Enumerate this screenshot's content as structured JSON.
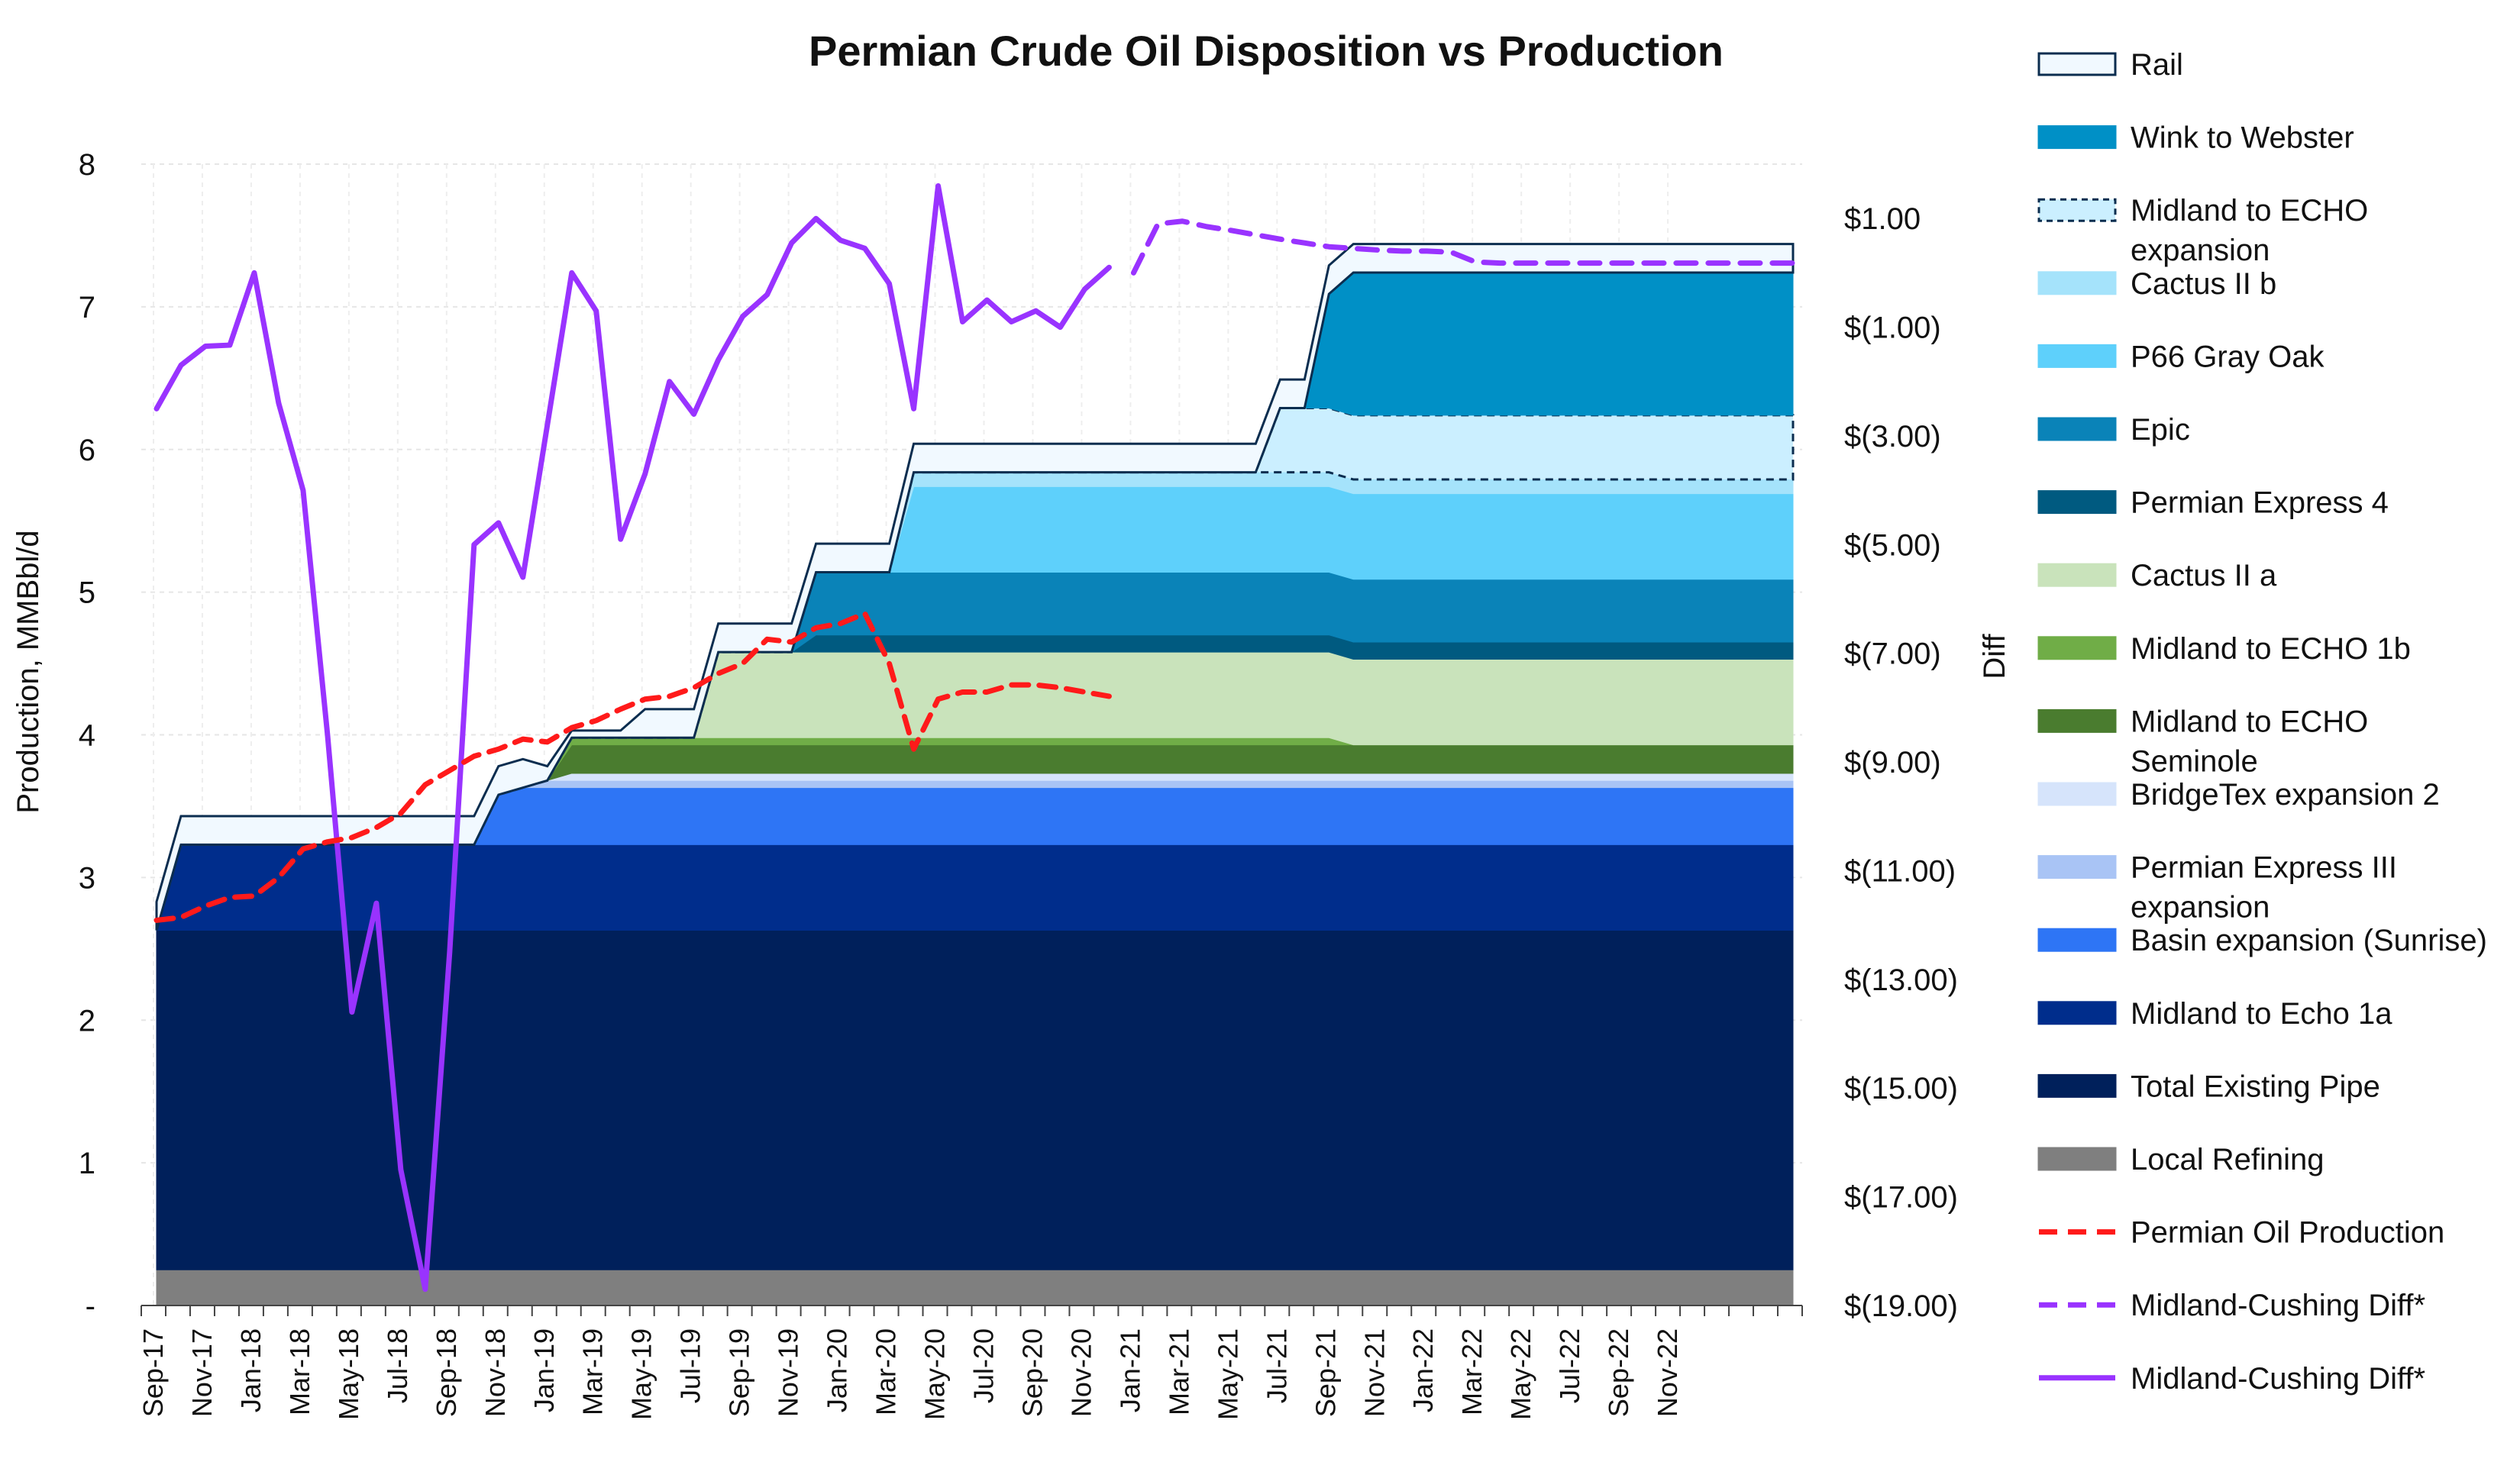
{
  "chart_data": {
    "type": "area",
    "title": "Permian Crude Oil Disposition vs Production",
    "ylabel": "Production, MMBbl/d",
    "y2label": "Diff",
    "ylim": [
      0,
      8
    ],
    "y2lim": [
      -19,
      2
    ],
    "y_ticks": [
      "-",
      "1",
      "2",
      "3",
      "4",
      "5",
      "6",
      "7",
      "8"
    ],
    "y2_ticks": [
      "$(19.00)",
      "$(17.00)",
      "$(15.00)",
      "$(13.00)",
      "$(11.00)",
      "$(9.00)",
      "$(7.00)",
      "$(5.00)",
      "$(3.00)",
      "$(1.00)",
      "$1.00"
    ],
    "y2_tick_values": [
      -19,
      -17,
      -15,
      -13,
      -11,
      -9,
      -7,
      -5,
      -3,
      -1,
      1
    ],
    "x_ticks": [
      "Sep-17",
      "Nov-17",
      "Jan-18",
      "Mar-18",
      "May-18",
      "Jul-18",
      "Sep-18",
      "Nov-18",
      "Jan-19",
      "Mar-19",
      "May-19",
      "Jul-19",
      "Sep-19",
      "Nov-19",
      "Jan-20",
      "Mar-20",
      "May-20",
      "Jul-20",
      "Sep-20",
      "Nov-20",
      "Jan-21",
      "Mar-21",
      "May-21",
      "Jul-21",
      "Sep-21",
      "Nov-21",
      "Jan-22",
      "Mar-22",
      "May-22",
      "Jul-22",
      "Sep-22",
      "Nov-22"
    ],
    "grid": true,
    "legend_position": "right",
    "stack_series": [
      {
        "name": "Local Refining",
        "color": "#7f7f7f",
        "steps": [
          [
            0,
            0.25
          ]
        ]
      },
      {
        "name": "Total Existing Pipe",
        "color": "#00205b",
        "steps": [
          [
            0,
            2.38
          ]
        ]
      },
      {
        "name": "Midland to Echo 1a",
        "color": "#002d8c",
        "steps": [
          [
            0,
            0
          ],
          [
            1,
            0.6
          ]
        ]
      },
      {
        "name": "Basin expansion (Sunrise)",
        "color": "#2e75f5",
        "steps": [
          [
            0,
            0
          ],
          [
            14,
            0.35
          ],
          [
            15,
            0.4
          ]
        ]
      },
      {
        "name": "Permian Express III expansion",
        "color": "#a9c4f5",
        "steps": [
          [
            0,
            0
          ],
          [
            16,
            0.05
          ]
        ]
      },
      {
        "name": "BridgeTex expansion 2",
        "color": "#d6e4fb",
        "steps": [
          [
            0,
            0
          ],
          [
            17,
            0.05
          ]
        ]
      },
      {
        "name": "Midland to ECHO Seminole",
        "color": "#4a7c2f",
        "steps": [
          [
            0,
            0
          ],
          [
            17,
            0.2
          ]
        ]
      },
      {
        "name": "Midland to ECHO 1b",
        "color": "#70ad47",
        "steps": [
          [
            0,
            0
          ],
          [
            17,
            0.05
          ],
          [
            48,
            0.05
          ],
          [
            49,
            0
          ]
        ]
      },
      {
        "name": "Cactus II a",
        "color": "#c9e3bb",
        "steps": [
          [
            0,
            0
          ],
          [
            23,
            0.6
          ]
        ]
      },
      {
        "name": "Permian Express 4",
        "color": "#005a80",
        "steps": [
          [
            0,
            0
          ],
          [
            27,
            0.12
          ]
        ]
      },
      {
        "name": "Epic",
        "color": "#0a83b8",
        "steps": [
          [
            0,
            0
          ],
          [
            27,
            0.44
          ]
        ]
      },
      {
        "name": "P66 Gray Oak",
        "color": "#5ed0fb",
        "steps": [
          [
            0,
            0
          ],
          [
            31,
            0.6
          ]
        ]
      },
      {
        "name": "Cactus II b",
        "color": "#a5e3fb",
        "steps": [
          [
            0,
            0
          ],
          [
            31,
            0.1
          ]
        ]
      },
      {
        "name": "Midland to ECHO expansion",
        "color": "#cbefff",
        "steps": [
          [
            0,
            0
          ],
          [
            46,
            0.45
          ]
        ]
      },
      {
        "name": "Wink to Webster",
        "color": "#0090c6",
        "steps": [
          [
            0,
            0
          ],
          [
            48,
            0.8
          ],
          [
            49,
            1.0
          ]
        ]
      },
      {
        "name": "Rail",
        "color": "#f1f9ff",
        "steps": [
          [
            0,
            0.2
          ],
          [
            8,
            0.2
          ],
          [
            9,
            0.2
          ],
          [
            13,
            0.2
          ],
          [
            14,
            0.2
          ],
          [
            15,
            0.2
          ],
          [
            16,
            0.1
          ],
          [
            17,
            0.05
          ],
          [
            20,
            0.2
          ],
          [
            23,
            0.2
          ],
          [
            31,
            0.2
          ],
          [
            46,
            0.2
          ],
          [
            48,
            0.2
          ],
          [
            49,
            0.2
          ]
        ]
      }
    ],
    "production": {
      "name": "Permian Oil Production",
      "color": "#ff1a1a",
      "x": [
        0,
        1,
        2,
        3,
        4,
        5,
        6,
        7,
        8,
        9,
        10,
        11,
        12,
        13,
        14,
        15,
        16,
        17,
        18,
        19,
        20,
        21,
        22,
        23,
        24,
        25,
        26,
        27,
        28,
        29,
        30,
        31,
        32,
        33,
        34,
        35,
        36,
        37,
        38,
        39
      ],
      "values": [
        2.7,
        2.72,
        2.8,
        2.86,
        2.87,
        3.0,
        3.2,
        3.25,
        3.28,
        3.35,
        3.45,
        3.65,
        3.75,
        3.85,
        3.9,
        3.97,
        3.95,
        4.05,
        4.1,
        4.18,
        4.25,
        4.27,
        4.33,
        4.43,
        4.5,
        4.67,
        4.65,
        4.75,
        4.78,
        4.85,
        4.5,
        3.9,
        4.25,
        4.3,
        4.3,
        4.35,
        4.35,
        4.33,
        4.3,
        4.27
      ]
    },
    "diff_dashed": {
      "name": "Midland-Cushing Diff*",
      "color": "#9933ff",
      "x": [
        40,
        41,
        42,
        43,
        44,
        45,
        46,
        47,
        48,
        49,
        50,
        51,
        52,
        53,
        54,
        55,
        56,
        57,
        58,
        59,
        60,
        61,
        62,
        63,
        64,
        65,
        66,
        67
      ],
      "values": [
        0.0,
        0.9,
        0.95,
        0.85,
        0.78,
        0.7,
        0.62,
        0.55,
        0.48,
        0.45,
        0.42,
        0.4,
        0.4,
        0.38,
        0.2,
        0.18,
        0.18,
        0.18,
        0.18,
        0.18,
        0.18,
        0.18,
        0.18,
        0.18,
        0.18,
        0.18,
        0.18,
        0.18
      ]
    },
    "diff_solid": {
      "name": "Midland-Cushing Diff*",
      "color": "#9933ff",
      "x": [
        0,
        1,
        2,
        3,
        4,
        5,
        6,
        7,
        8,
        9,
        10,
        11,
        12,
        13,
        14,
        15,
        16,
        17,
        18,
        19,
        20,
        21,
        22,
        23,
        24,
        25,
        26,
        27,
        28,
        29,
        30,
        31,
        32,
        33,
        34,
        35,
        36,
        37,
        38,
        39
      ],
      "values": [
        -2.5,
        -1.7,
        -1.35,
        -1.33,
        0.0,
        -2.4,
        -4.0,
        -8.5,
        -13.6,
        -11.6,
        -16.5,
        -18.7,
        -12.5,
        -5.0,
        -4.6,
        -5.6,
        -2.8,
        0.0,
        -0.7,
        -4.9,
        -3.7,
        -2.0,
        -2.6,
        -1.6,
        -0.8,
        -0.4,
        0.55,
        1.0,
        0.6,
        0.45,
        -0.2,
        -2.5,
        1.6,
        -0.9,
        -0.5,
        -0.9,
        -0.7,
        -1.0,
        -0.3,
        0.1
      ]
    }
  },
  "legend": [
    {
      "label": "Rail",
      "kind": "box",
      "color": "#f1f9ff",
      "border": "#0b2d4f",
      "dashed": false
    },
    {
      "label": "Wink to Webster",
      "kind": "box",
      "color": "#0090c6",
      "border": "#0090c6",
      "dashed": false
    },
    {
      "label": "Midland to ECHO\nexpansion",
      "kind": "box",
      "color": "#cbefff",
      "border": "#0b2d4f",
      "dashed": true
    },
    {
      "label": "Cactus II b",
      "kind": "box",
      "color": "#a5e3fb",
      "border": "#a5e3fb",
      "dashed": false
    },
    {
      "label": "P66 Gray Oak",
      "kind": "box",
      "color": "#5ed0fb",
      "border": "#5ed0fb",
      "dashed": false
    },
    {
      "label": "Epic",
      "kind": "box",
      "color": "#0a83b8",
      "border": "#0a83b8",
      "dashed": false
    },
    {
      "label": "Permian Express 4",
      "kind": "box",
      "color": "#005a80",
      "border": "#005a80",
      "dashed": false
    },
    {
      "label": "Cactus II a",
      "kind": "box",
      "color": "#c9e3bb",
      "border": "#c9e3bb",
      "dashed": false
    },
    {
      "label": "Midland to ECHO 1b",
      "kind": "box",
      "color": "#70ad47",
      "border": "#70ad47",
      "dashed": false
    },
    {
      "label": "Midland to ECHO\nSeminole",
      "kind": "box",
      "color": "#4a7c2f",
      "border": "#4a7c2f",
      "dashed": false
    },
    {
      "label": "BridgeTex expansion 2",
      "kind": "box",
      "color": "#d6e4fb",
      "border": "#d6e4fb",
      "dashed": false
    },
    {
      "label": "Permian Express III\nexpansion",
      "kind": "box",
      "color": "#a9c4f5",
      "border": "#a9c4f5",
      "dashed": false
    },
    {
      "label": "Basin expansion (Sunrise)",
      "kind": "box",
      "color": "#2e75f5",
      "border": "#2e75f5",
      "dashed": false
    },
    {
      "label": "Midland to Echo 1a",
      "kind": "box",
      "color": "#002d8c",
      "border": "#002d8c",
      "dashed": false
    },
    {
      "label": "Total Existing Pipe",
      "kind": "box",
      "color": "#00205b",
      "border": "#00205b",
      "dashed": false
    },
    {
      "label": "Local Refining",
      "kind": "box",
      "color": "#7f7f7f",
      "border": "#7f7f7f",
      "dashed": false
    },
    {
      "label": "Permian Oil Production",
      "kind": "line",
      "color": "#ff1a1a",
      "dashed": true
    },
    {
      "label": "Midland-Cushing Diff*",
      "kind": "line",
      "color": "#9933ff",
      "dashed": true
    },
    {
      "label": "Midland-Cushing Diff*",
      "kind": "line",
      "color": "#9933ff",
      "dashed": false
    }
  ]
}
